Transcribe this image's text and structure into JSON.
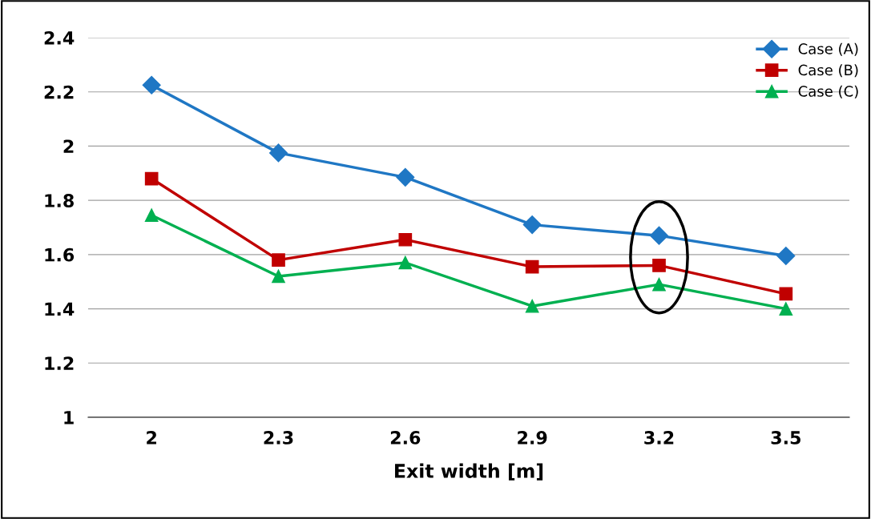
{
  "chart_data": {
    "type": "line",
    "xlabel": "Exit width [m]",
    "categories": [
      "2",
      "2.3",
      "2.6",
      "2.9",
      "3.2",
      "3.5"
    ],
    "series": [
      {
        "name": "Case (A)",
        "color": "#1f77c4",
        "marker": "diamond",
        "values": [
          2.225,
          1.975,
          1.885,
          1.71,
          1.67,
          1.595
        ]
      },
      {
        "name": "Case (B)",
        "color": "#c00000",
        "marker": "square",
        "values": [
          1.88,
          1.58,
          1.655,
          1.555,
          1.56,
          1.455
        ]
      },
      {
        "name": "Case (C)",
        "color": "#00b050",
        "marker": "triangle",
        "values": [
          1.745,
          1.52,
          1.57,
          1.41,
          1.49,
          1.4
        ]
      }
    ],
    "ylim": [
      1,
      2.4
    ],
    "yticks": [
      1,
      1.2,
      1.4,
      1.6,
      1.8,
      2,
      2.2,
      2.4
    ],
    "grid": "y",
    "legend": "top right",
    "line_style": "solid"
  }
}
